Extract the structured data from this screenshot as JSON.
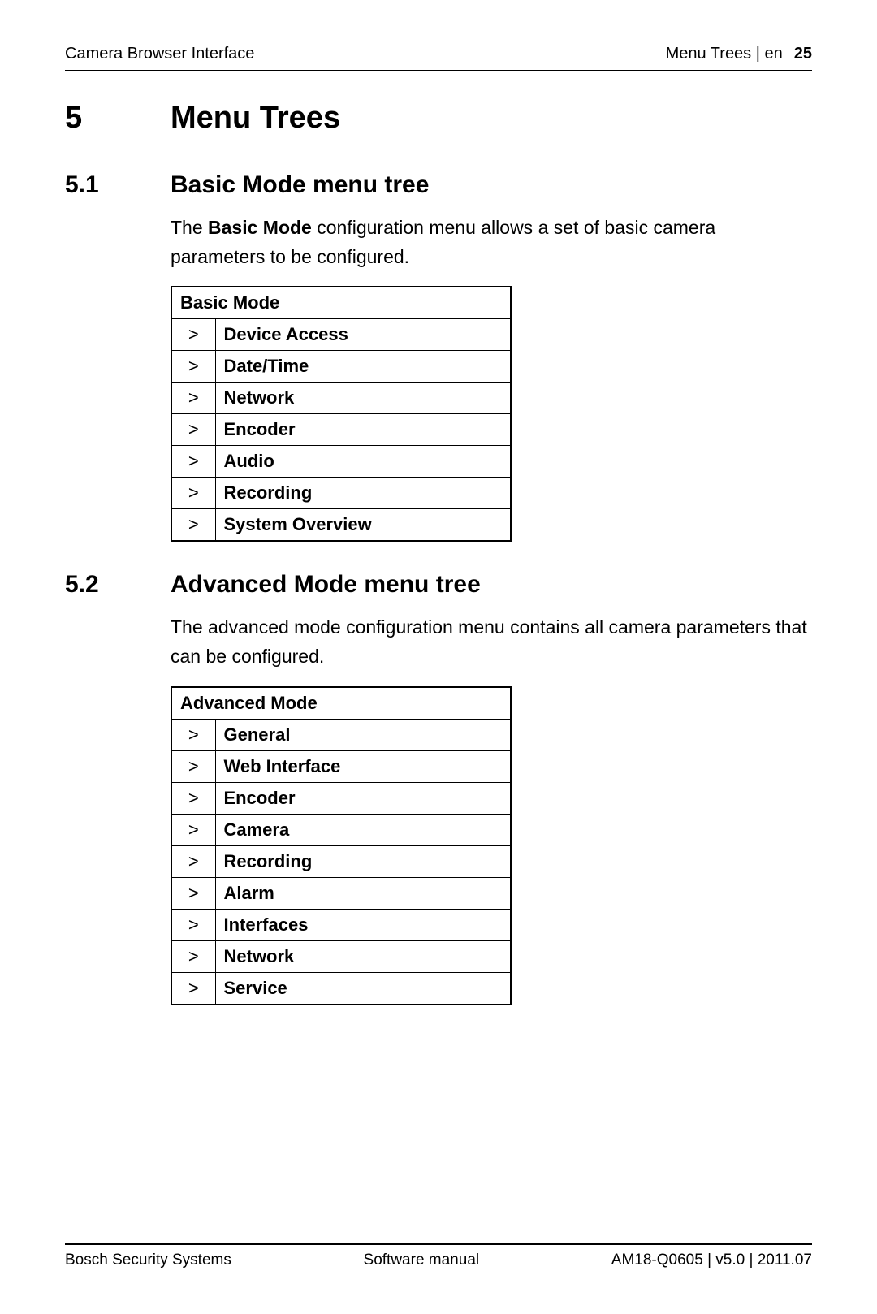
{
  "header": {
    "left": "Camera Browser Interface",
    "right_text": "Menu Trees | en",
    "page": "25"
  },
  "chapter": {
    "num": "5",
    "title": "Menu Trees"
  },
  "section1": {
    "num": "5.1",
    "title": "Basic Mode menu tree",
    "para_pre": "The ",
    "para_bold": "Basic Mode",
    "para_post": " configuration menu allows a set of basic camera parameters to be configured.",
    "table_header": "Basic Mode",
    "items": [
      "Device Access",
      "Date/Time",
      "Network",
      "Encoder",
      "Audio",
      "Recording",
      "System Overview"
    ]
  },
  "section2": {
    "num": "5.2",
    "title": "Advanced Mode menu tree",
    "para": "The advanced mode configuration menu contains all camera parameters that can be configured.",
    "table_header": "Advanced Mode",
    "items": [
      "General",
      "Web Interface",
      "Encoder",
      "Camera",
      "Recording",
      "Alarm",
      "Interfaces",
      "Network",
      "Service"
    ]
  },
  "footer": {
    "left": "Bosch Security Systems",
    "center": "Software manual",
    "right": "AM18-Q0605 | v5.0 | 2011.07"
  },
  "arrow": ">"
}
